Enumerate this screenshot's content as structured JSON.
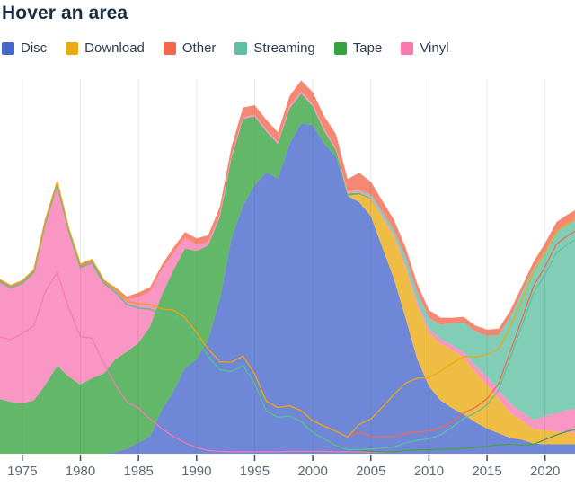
{
  "title": "Hover an area",
  "legend": {
    "items": [
      {
        "id": "disc",
        "label": "Disc",
        "color": "#4565cb"
      },
      {
        "id": "download",
        "label": "Download",
        "color": "#eaaa10"
      },
      {
        "id": "other",
        "label": "Other",
        "color": "#f4674c"
      },
      {
        "id": "streaming",
        "label": "Streaming",
        "color": "#5fbfa2"
      },
      {
        "id": "tape",
        "label": "Tape",
        "color": "#36a33f"
      },
      {
        "id": "vinyl",
        "label": "Vinyl",
        "color": "#f878b2"
      }
    ]
  },
  "chart_data": {
    "type": "area",
    "stacked": true,
    "title": "Hover an area",
    "xlabel": "",
    "ylabel": "",
    "y_axis_visible": false,
    "ylim": [
      0,
      25
    ],
    "grid": "vertical",
    "fill_opacity": 0.78,
    "x_ticks": [
      1975,
      1980,
      1985,
      1990,
      1995,
      2000,
      2005,
      2010,
      2015,
      2020
    ],
    "x": [
      1973,
      1974,
      1975,
      1976,
      1977,
      1978,
      1979,
      1980,
      1981,
      1982,
      1983,
      1984,
      1985,
      1986,
      1987,
      1988,
      1989,
      1990,
      1991,
      1992,
      1993,
      1994,
      1995,
      1996,
      1997,
      1998,
      1999,
      2000,
      2001,
      2002,
      2003,
      2004,
      2005,
      2006,
      2007,
      2008,
      2009,
      2010,
      2011,
      2012,
      2013,
      2014,
      2015,
      2016,
      2017,
      2018,
      2019,
      2020,
      2021,
      2022,
      2023
    ],
    "fill_stack_order": [
      "Disc",
      "Download",
      "Tape",
      "Vinyl",
      "Streaming",
      "Other"
    ],
    "line_stack_order": [
      "Vinyl",
      "Tape",
      "Streaming",
      "Other",
      "Download"
    ],
    "series": [
      {
        "name": "Disc",
        "color": "#4565cb",
        "values": [
          0,
          0,
          0,
          0,
          0,
          0,
          0,
          0,
          0,
          0,
          0.1,
          0.3,
          0.7,
          1.1,
          2.8,
          3.95,
          5.45,
          6.0,
          7.25,
          9.85,
          13.7,
          15.8,
          17.1,
          17.9,
          17.5,
          19.7,
          21.0,
          20.9,
          19.7,
          18.9,
          16.4,
          16.0,
          15.1,
          13.1,
          11.1,
          8.6,
          6.0,
          4.3,
          3.4,
          2.9,
          2.5,
          2.0,
          1.6,
          1.3,
          1.0,
          0.9,
          0.65,
          0.6,
          0.6,
          0.6,
          0.6
        ]
      },
      {
        "name": "Download",
        "color": "#eaaa10",
        "values": [
          0,
          0,
          0,
          0,
          0,
          0,
          0,
          0,
          0,
          0,
          0,
          0,
          0,
          0,
          0,
          0,
          0,
          0,
          0,
          0,
          0,
          0,
          0,
          0,
          0,
          0,
          0,
          0,
          0,
          0,
          0,
          0.5,
          1.1,
          1.9,
          2.7,
          3.2,
          3.4,
          3.4,
          3.6,
          3.7,
          3.6,
          3.2,
          2.8,
          2.2,
          1.6,
          1.2,
          0.9,
          0.9,
          0.8,
          0.75,
          0.7
        ]
      },
      {
        "name": "Tape",
        "color": "#36a33f",
        "values": [
          3.5,
          3.3,
          3.2,
          3.4,
          4.4,
          5.6,
          4.9,
          4.4,
          4.8,
          5.1,
          5.9,
          6.2,
          6.35,
          7.0,
          7.3,
          7.7,
          7.6,
          6.9,
          6.0,
          5.2,
          5.1,
          5.5,
          4.35,
          2.6,
          2.2,
          2.25,
          1.9,
          1.2,
          0.8,
          0.4,
          0.15,
          0.1,
          0.05,
          0.02,
          0,
          0,
          0,
          0,
          0,
          0,
          0,
          0,
          0,
          0,
          0,
          0,
          0,
          0,
          0,
          0,
          0
        ]
      },
      {
        "name": "Vinyl",
        "color": "#f878b2",
        "values": [
          7.45,
          7.25,
          7.65,
          8.15,
          10.35,
          11.55,
          9.25,
          7.45,
          7.35,
          5.75,
          4.4,
          3.3,
          2.9,
          2.2,
          1.6,
          1.1,
          0.7,
          0.4,
          0.2,
          0.15,
          0.12,
          0.12,
          0.12,
          0.12,
          0.12,
          0.15,
          0.15,
          0.15,
          0.15,
          0.12,
          0.12,
          0.12,
          0.1,
          0.1,
          0.12,
          0.2,
          0.25,
          0.25,
          0.3,
          0.3,
          0.35,
          0.4,
          0.5,
          0.55,
          0.6,
          0.55,
          0.6,
          0.9,
          1.2,
          1.45,
          1.6
        ]
      },
      {
        "name": "Streaming",
        "color": "#5fbfa2",
        "values": [
          0,
          0,
          0,
          0,
          0,
          0,
          0,
          0,
          0,
          0,
          0,
          0,
          0,
          0,
          0,
          0,
          0,
          0,
          0,
          0,
          0,
          0,
          0,
          0,
          0,
          0,
          0,
          0,
          0,
          0,
          0,
          0.05,
          0.15,
          0.25,
          0.3,
          0.5,
          0.6,
          0.7,
          0.9,
          1.4,
          1.9,
          2.2,
          2.6,
          3.5,
          5.5,
          7.6,
          9.6,
          10.5,
          11.6,
          11.9,
          12.2
        ]
      },
      {
        "name": "Other",
        "color": "#f4674c",
        "values": [
          0.15,
          0.15,
          0.15,
          0.15,
          0.15,
          0.15,
          0.15,
          0.2,
          0.2,
          0.2,
          0.2,
          0.2,
          0.3,
          0.3,
          0.3,
          0.35,
          0.35,
          0.4,
          0.45,
          0.5,
          0.6,
          0.6,
          0.6,
          0.62,
          0.62,
          0.65,
          0.7,
          0.75,
          0.8,
          0.9,
          0.8,
          1.1,
          0.8,
          0.7,
          0.65,
          0.6,
          0.55,
          0.5,
          0.45,
          0.35,
          0.35,
          0.35,
          0.4,
          0.4,
          0.4,
          0.4,
          0.45,
          0.5,
          0.55,
          0.55,
          0.55
        ]
      }
    ]
  }
}
